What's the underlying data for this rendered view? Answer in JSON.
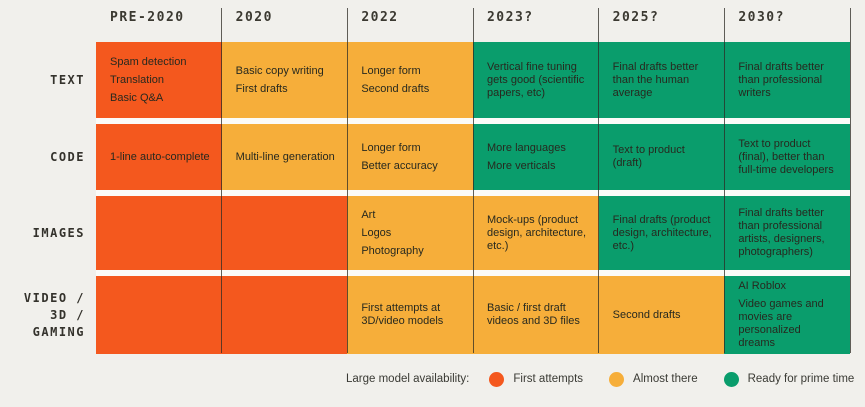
{
  "colors": {
    "first_attempts": "#f4581e",
    "almost_there": "#f6ae3a",
    "ready_for_prime_time": "#0a9d6c",
    "background": "#f1f0ec",
    "row_gap": "#fbfbf8",
    "divider": "#2d2c26",
    "cell_text": "#27291f"
  },
  "columns": [
    "PRE-2020",
    "2020",
    "2022",
    "2023?",
    "2025?",
    "2030?"
  ],
  "rows": [
    {
      "label_lines": [
        "TEXT"
      ],
      "cells": [
        {
          "status": "first_attempts",
          "items": [
            "Spam detection",
            "Translation",
            "Basic Q&A"
          ]
        },
        {
          "status": "almost_there",
          "items": [
            "Basic copy writing",
            "First drafts"
          ]
        },
        {
          "status": "almost_there",
          "items": [
            "Longer form",
            "Second drafts"
          ]
        },
        {
          "status": "ready_for_prime_time",
          "items": [
            "Vertical fine tuning gets good (scientific papers, etc)"
          ]
        },
        {
          "status": "ready_for_prime_time",
          "items": [
            "Final drafts better than the human average"
          ]
        },
        {
          "status": "ready_for_prime_time",
          "items": [
            "Final drafts better than professional writers"
          ]
        }
      ]
    },
    {
      "label_lines": [
        "CODE"
      ],
      "cells": [
        {
          "status": "first_attempts",
          "items": [
            "1-line auto-complete"
          ]
        },
        {
          "status": "almost_there",
          "items": [
            "Multi-line generation"
          ]
        },
        {
          "status": "almost_there",
          "items": [
            "Longer form",
            "Better accuracy"
          ]
        },
        {
          "status": "ready_for_prime_time",
          "items": [
            "More languages",
            "More verticals"
          ]
        },
        {
          "status": "ready_for_prime_time",
          "items": [
            "Text to product (draft)"
          ]
        },
        {
          "status": "ready_for_prime_time",
          "items": [
            "Text to product (final), better than full-time developers"
          ]
        }
      ]
    },
    {
      "label_lines": [
        "IMAGES"
      ],
      "cells": [
        {
          "status": "first_attempts",
          "items": []
        },
        {
          "status": "first_attempts",
          "items": []
        },
        {
          "status": "almost_there",
          "items": [
            "Art",
            "Logos",
            "Photography"
          ]
        },
        {
          "status": "almost_there",
          "items": [
            "Mock-ups (product design, architecture, etc.)"
          ]
        },
        {
          "status": "ready_for_prime_time",
          "items": [
            "Final drafts (product design, architecture, etc.)"
          ]
        },
        {
          "status": "ready_for_prime_time",
          "items": [
            "Final drafts better than professional artists, designers, photographers)"
          ]
        }
      ]
    },
    {
      "label_lines": [
        "VIDEO /",
        "3D /",
        "GAMING"
      ],
      "cells": [
        {
          "status": "first_attempts",
          "items": []
        },
        {
          "status": "first_attempts",
          "items": []
        },
        {
          "status": "almost_there",
          "items": [
            "First attempts at 3D/video models"
          ]
        },
        {
          "status": "almost_there",
          "items": [
            "Basic / first draft videos and 3D files"
          ]
        },
        {
          "status": "almost_there",
          "items": [
            "Second drafts"
          ]
        },
        {
          "status": "ready_for_prime_time",
          "items": [
            "AI Roblox",
            "Video games and movies are personalized dreams"
          ]
        }
      ]
    }
  ],
  "legend": {
    "label": "Large model availability:",
    "items": [
      {
        "name": "First attempts",
        "status": "first_attempts",
        "color": "#f4581e"
      },
      {
        "name": "Almost there",
        "status": "almost_there",
        "color": "#f6ae3a"
      },
      {
        "name": "Ready for prime time",
        "status": "ready_for_prime_time",
        "color": "#0a9d6c"
      }
    ]
  }
}
